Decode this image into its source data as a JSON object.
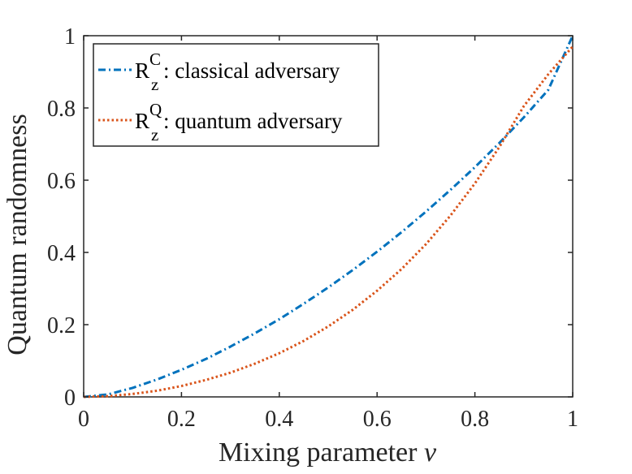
{
  "chart_data": {
    "type": "line",
    "title": "",
    "xlabel": "Mixing parameter",
    "xlabel_var": "v",
    "ylabel": "Quantum randomness",
    "xlim": [
      0,
      1
    ],
    "ylim": [
      0,
      1
    ],
    "xticks": [
      0,
      0.2,
      0.4,
      0.6,
      0.8,
      1
    ],
    "yticks": [
      0,
      0.2,
      0.4,
      0.6,
      0.8,
      1
    ],
    "xtick_labels": [
      "0",
      "0.2",
      "0.4",
      "0.6",
      "0.8",
      "1"
    ],
    "ytick_labels": [
      "0",
      "0.2",
      "0.4",
      "0.6",
      "0.8",
      "1"
    ],
    "grid": false,
    "legend_position": "top-left",
    "series": [
      {
        "name": "R_z^C: classical adversary",
        "symbol": "R",
        "sub": "z",
        "sup": "C",
        "label": ": classical adversary",
        "style": "dash-dot",
        "color": "#0072BD",
        "x": [
          0,
          0.05,
          0.1,
          0.15,
          0.2,
          0.25,
          0.3,
          0.35,
          0.4,
          0.45,
          0.5,
          0.55,
          0.6,
          0.65,
          0.7,
          0.75,
          0.8,
          0.85,
          0.9,
          0.95,
          1.0
        ],
        "y": [
          0,
          0.007,
          0.025,
          0.048,
          0.075,
          0.105,
          0.139,
          0.176,
          0.215,
          0.258,
          0.303,
          0.351,
          0.402,
          0.456,
          0.513,
          0.573,
          0.636,
          0.703,
          0.774,
          0.85,
          1.0
        ]
      },
      {
        "name": "R_z^Q: quantum adversary",
        "symbol": "R",
        "sub": "z",
        "sup": "Q",
        "label": ": quantum adversary",
        "style": "dotted",
        "color": "#D95319",
        "x": [
          0,
          0.05,
          0.1,
          0.15,
          0.2,
          0.25,
          0.3,
          0.35,
          0.4,
          0.45,
          0.5,
          0.55,
          0.6,
          0.65,
          0.7,
          0.75,
          0.8,
          0.85,
          0.9,
          0.95,
          1.0
        ],
        "y": [
          0,
          0.002,
          0.008,
          0.017,
          0.03,
          0.047,
          0.067,
          0.092,
          0.121,
          0.155,
          0.195,
          0.241,
          0.294,
          0.354,
          0.423,
          0.502,
          0.591,
          0.692,
          0.805,
          0.893,
          0.97
        ]
      }
    ]
  }
}
